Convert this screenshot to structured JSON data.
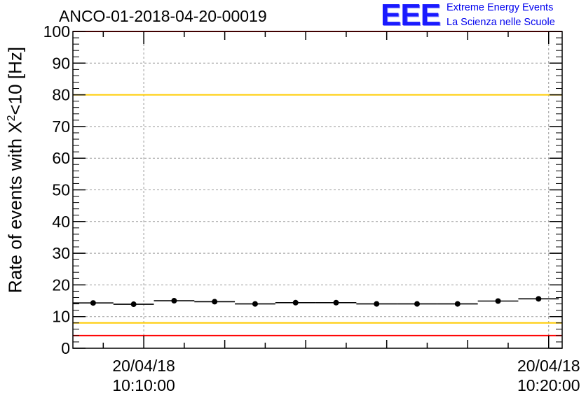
{
  "header": {
    "run_title": "ANCO-01-2018-04-20-00019",
    "logo_text": "EEE",
    "logo_line1": "Extreme Energy Events",
    "logo_line2": "La Scienza nelle Scuole"
  },
  "chart_data": {
    "type": "scatter",
    "title": "ANCO-01-2018-04-20-00019",
    "ylabel_main": "Rate of events with X",
    "ylabel_sup": "2",
    "ylabel_tail": "<10 [Hz]",
    "xlabel": "",
    "ylim": [
      0,
      100
    ],
    "xlim": [
      "2018-04-20 10:08:15",
      "2018-04-20 10:20:20"
    ],
    "yticks": [
      0,
      10,
      20,
      30,
      40,
      50,
      60,
      70,
      80,
      90,
      100
    ],
    "xtick_labels": [
      {
        "x": "2018-04-20 10:10:00",
        "date": "20/04/18",
        "time": "10:10:00"
      },
      {
        "x": "2018-04-20 10:20:00",
        "date": "20/04/18",
        "time": "10:20:00"
      }
    ],
    "grid": true,
    "reference_lines": [
      {
        "y": 100,
        "color": "#ff0000"
      },
      {
        "y": 80,
        "color": "#ffcc00"
      },
      {
        "y": 8,
        "color": "#ffcc00"
      },
      {
        "y": 4,
        "color": "#ff0000"
      }
    ],
    "bin_width_seconds": 60,
    "points": [
      {
        "x": "2018-04-20 10:08:45",
        "y": 14.3
      },
      {
        "x": "2018-04-20 10:09:45",
        "y": 13.9
      },
      {
        "x": "2018-04-20 10:10:45",
        "y": 15.0
      },
      {
        "x": "2018-04-20 10:11:45",
        "y": 14.7
      },
      {
        "x": "2018-04-20 10:12:45",
        "y": 14.0
      },
      {
        "x": "2018-04-20 10:13:45",
        "y": 14.4
      },
      {
        "x": "2018-04-20 10:14:45",
        "y": 14.4
      },
      {
        "x": "2018-04-20 10:15:45",
        "y": 14.0
      },
      {
        "x": "2018-04-20 10:16:45",
        "y": 14.0
      },
      {
        "x": "2018-04-20 10:17:45",
        "y": 14.0
      },
      {
        "x": "2018-04-20 10:18:45",
        "y": 14.9
      },
      {
        "x": "2018-04-20 10:19:45",
        "y": 15.6
      }
    ]
  }
}
